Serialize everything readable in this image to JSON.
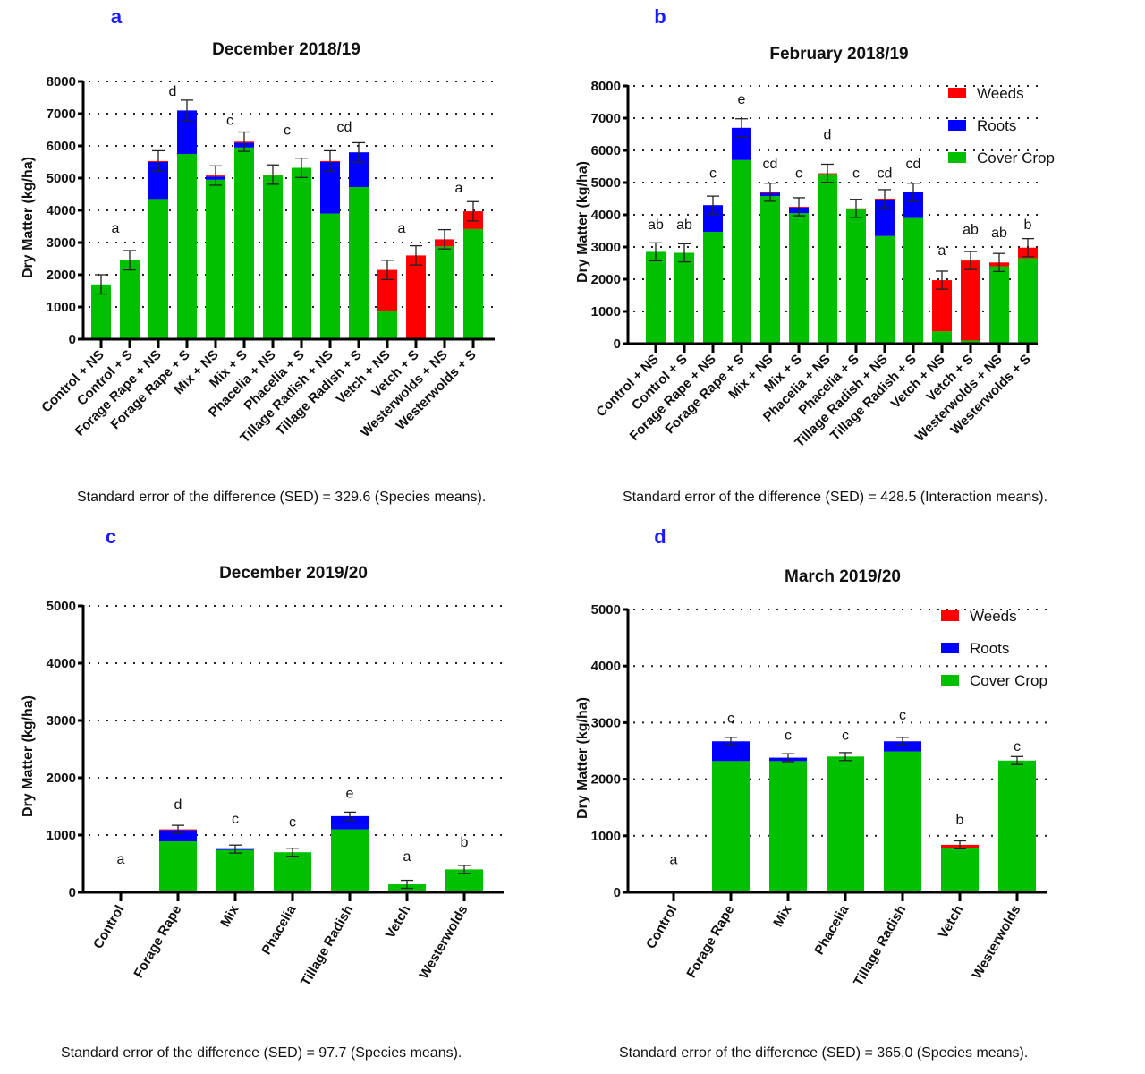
{
  "chart_data": [
    {
      "panel_letter": "a",
      "type": "bar",
      "stacked": true,
      "title": "December 2018/19",
      "ylabel": "Dry Matter (kg/ha)",
      "xlabel": "",
      "ylim": [
        0,
        8000
      ],
      "yticks": [
        0,
        1000,
        2000,
        3000,
        4000,
        5000,
        6000,
        7000,
        8000
      ],
      "grid": "horizontal-dotted",
      "legend": null,
      "categories": [
        "Control + NS",
        "Control + S",
        "Forage Rape + NS",
        "Forage Rape + S",
        "Mix + NS",
        "Mix + S",
        "Phacelia + NS",
        "Phacelia + S",
        "Tillage Radish + NS",
        "Tillage Radish + S",
        "Vetch + NS",
        "Vetch + S",
        "Westerwolds + NS",
        "Westerwolds + S"
      ],
      "series": [
        {
          "name": "Cover Crop",
          "color": "#00c000",
          "values": [
            1700,
            2450,
            4350,
            5750,
            4950,
            5950,
            5080,
            5320,
            3900,
            4720,
            870,
            30,
            2880,
            3420
          ]
        },
        {
          "name": "Roots",
          "color": "#0000ff",
          "values": [
            0,
            0,
            1150,
            1350,
            100,
            150,
            0,
            0,
            1600,
            1080,
            0,
            0,
            0,
            0
          ]
        },
        {
          "name": "Weeds",
          "color": "#ff0000",
          "values": [
            0,
            0,
            30,
            0,
            30,
            30,
            30,
            0,
            30,
            0,
            1280,
            2570,
            220,
            550
          ]
        }
      ],
      "error": [
        300,
        300,
        320,
        320,
        300,
        300,
        300,
        300,
        320,
        300,
        300,
        300,
        300,
        300
      ],
      "letters": [
        {
          "index": 0.5,
          "text": "a",
          "y": 3300
        },
        {
          "index": 2.5,
          "text": "d",
          "y": 7550
        },
        {
          "index": 4.5,
          "text": "c",
          "y": 6650
        },
        {
          "index": 6.5,
          "text": "c",
          "y": 6350
        },
        {
          "index": 8.5,
          "text": "cd",
          "y": 6450
        },
        {
          "index": 10.5,
          "text": "a",
          "y": 3300
        },
        {
          "index": 12.5,
          "text": "a",
          "y": 4550
        }
      ],
      "caption": "Standard error of the difference (SED) = 329.6 (Species means)."
    },
    {
      "panel_letter": "b",
      "type": "bar",
      "stacked": true,
      "title": "February 2018/19",
      "ylabel": "Dry Matter (kg/ha)",
      "xlabel": "",
      "ylim": [
        0,
        8000
      ],
      "yticks": [
        0,
        1000,
        2000,
        3000,
        4000,
        5000,
        6000,
        7000,
        8000
      ],
      "grid": "horizontal-dotted",
      "legend": {
        "position": "top-right",
        "entries": [
          "Weeds",
          "Roots",
          "Cover Crop"
        ]
      },
      "categories": [
        "Control + NS",
        "Control + S",
        "Forage Rape + NS",
        "Forage Rape + S",
        "Mix + NS",
        "Mix + S",
        "Phacelia + NS",
        "Phacelia + S",
        "Tillage Radish + NS",
        "Tillage Radish + S",
        "Vetch + NS",
        "Vetch + S",
        "Westerwolds + NS",
        "Westerwolds + S"
      ],
      "series": [
        {
          "name": "Cover Crop",
          "color": "#00c000",
          "values": [
            2850,
            2820,
            3470,
            5700,
            4580,
            4050,
            5270,
            4170,
            3340,
            3900,
            380,
            100,
            2400,
            2650
          ]
        },
        {
          "name": "Roots",
          "color": "#0000ff",
          "values": [
            0,
            0,
            830,
            1000,
            100,
            180,
            0,
            0,
            1130,
            800,
            0,
            0,
            0,
            0
          ]
        },
        {
          "name": "Weeds",
          "color": "#ff0000",
          "values": [
            0,
            0,
            0,
            0,
            20,
            20,
            20,
            30,
            30,
            0,
            1590,
            2480,
            120,
            330
          ]
        }
      ],
      "error": [
        280,
        280,
        280,
        280,
        280,
        280,
        280,
        280,
        280,
        280,
        280,
        280,
        280,
        280
      ],
      "letters": [
        {
          "index": 0,
          "text": "ab",
          "y": 3550
        },
        {
          "index": 1,
          "text": "ab",
          "y": 3550
        },
        {
          "index": 2,
          "text": "c",
          "y": 5150
        },
        {
          "index": 3,
          "text": "e",
          "y": 7450
        },
        {
          "index": 4,
          "text": "cd",
          "y": 5450
        },
        {
          "index": 5,
          "text": "c",
          "y": 5150
        },
        {
          "index": 6,
          "text": "d",
          "y": 6350
        },
        {
          "index": 7,
          "text": "c",
          "y": 5150
        },
        {
          "index": 8,
          "text": "cd",
          "y": 5150
        },
        {
          "index": 9,
          "text": "cd",
          "y": 5450
        },
        {
          "index": 10,
          "text": "a",
          "y": 2750
        },
        {
          "index": 11,
          "text": "ab",
          "y": 3400
        },
        {
          "index": 12,
          "text": "ab",
          "y": 3300
        },
        {
          "index": 13,
          "text": "b",
          "y": 3550
        }
      ],
      "caption": "Standard error of the difference (SED) = 428.5 (Interaction means)."
    },
    {
      "panel_letter": "c",
      "type": "bar",
      "stacked": true,
      "title": "December 2019/20",
      "ylabel": "Dry Matter (kg/ha)",
      "xlabel": "",
      "ylim": [
        0,
        5000
      ],
      "yticks": [
        0,
        1000,
        2000,
        3000,
        4000,
        5000
      ],
      "grid": "horizontal-dotted",
      "legend": null,
      "categories": [
        "Control",
        "Forage Rape",
        "Mix",
        "Phacelia",
        "Tillage Radish",
        "Vetch",
        "Westerwolds"
      ],
      "series": [
        {
          "name": "Cover Crop",
          "color": "#00c000",
          "values": [
            0,
            890,
            740,
            700,
            1100,
            140,
            400
          ]
        },
        {
          "name": "Roots",
          "color": "#0000ff",
          "values": [
            0,
            200,
            15,
            0,
            230,
            0,
            0
          ]
        },
        {
          "name": "Weeds",
          "color": "#ff0000",
          "values": [
            0,
            10,
            0,
            0,
            0,
            0,
            0
          ]
        }
      ],
      "error": [
        0,
        70,
        70,
        70,
        70,
        70,
        70
      ],
      "letters": [
        {
          "index": 0,
          "text": "a",
          "y": 500
        },
        {
          "index": 1,
          "text": "d",
          "y": 1450
        },
        {
          "index": 2,
          "text": "c",
          "y": 1200
        },
        {
          "index": 3,
          "text": "c",
          "y": 1150
        },
        {
          "index": 4,
          "text": "e",
          "y": 1650
        },
        {
          "index": 5,
          "text": "a",
          "y": 550
        },
        {
          "index": 6,
          "text": "b",
          "y": 800
        }
      ],
      "caption": "Standard error of the difference (SED) = 97.7 (Species means)."
    },
    {
      "panel_letter": "d",
      "type": "bar",
      "stacked": true,
      "title": "March 2019/20",
      "ylabel": "Dry Matter (kg/ha)",
      "xlabel": "",
      "ylim": [
        0,
        5000
      ],
      "yticks": [
        0,
        1000,
        2000,
        3000,
        4000,
        5000
      ],
      "grid": "horizontal-dotted",
      "legend": {
        "position": "top-right",
        "entries": [
          "Weeds",
          "Roots",
          "Cover Crop"
        ]
      },
      "categories": [
        "Control",
        "Forage Rape",
        "Mix",
        "Phacelia",
        "Tillage Radish",
        "Vetch",
        "Westerwolds"
      ],
      "series": [
        {
          "name": "Cover Crop",
          "color": "#00c000",
          "values": [
            0,
            2320,
            2320,
            2400,
            2490,
            780,
            2330
          ]
        },
        {
          "name": "Roots",
          "color": "#0000ff",
          "values": [
            0,
            350,
            60,
            0,
            180,
            0,
            0
          ]
        },
        {
          "name": "Weeds",
          "color": "#ff0000",
          "values": [
            0,
            0,
            0,
            0,
            0,
            60,
            0
          ]
        }
      ],
      "error": [
        0,
        70,
        70,
        70,
        70,
        70,
        70
      ],
      "letters": [
        {
          "index": 0,
          "text": "a",
          "y": 500
        },
        {
          "index": 1,
          "text": "c",
          "y": 3000
        },
        {
          "index": 2,
          "text": "c",
          "y": 2700
        },
        {
          "index": 3,
          "text": "c",
          "y": 2700
        },
        {
          "index": 4,
          "text": "c",
          "y": 3050
        },
        {
          "index": 5,
          "text": "b",
          "y": 1200
        },
        {
          "index": 6,
          "text": "c",
          "y": 2500
        }
      ],
      "caption": "Standard error of the difference (SED) = 365.0 (Species means)."
    }
  ],
  "colors": {
    "panel_letter": "#1a1aff",
    "cover_crop": "#00c000",
    "roots": "#0000ff",
    "weeds": "#ff0000"
  }
}
